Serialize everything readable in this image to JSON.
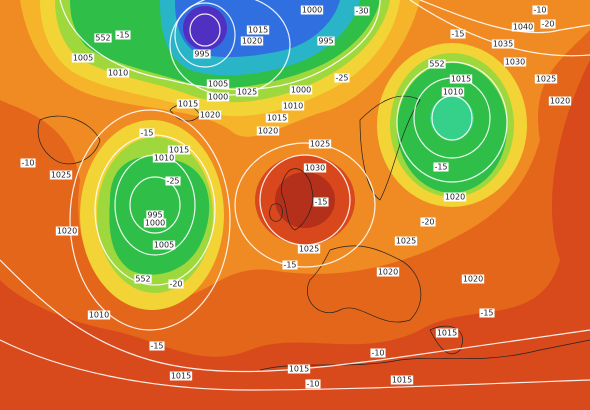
{
  "map": {
    "labels": [
      "1040",
      "1035",
      "1030",
      "1025",
      "1020",
      "1015",
      "1010",
      "552",
      "-15",
      "-20",
      "1025",
      "1030",
      "1020",
      "1015",
      "1010",
      "1000",
      "1000",
      "995",
      "1015",
      "1020",
      "995",
      "1005",
      "1000",
      "1020",
      "1025",
      "1015",
      "1005",
      "1010",
      "552",
      "-15",
      "-15",
      "1025",
      "1020",
      "-10",
      "1015",
      "1010",
      "-25",
      "995",
      "1000",
      "1005",
      "552",
      "-20",
      "1010",
      "-15",
      "1015",
      "-15",
      "1025",
      "-15",
      "1025",
      "1020",
      "-20",
      "-15",
      "1020",
      "1020",
      "-15",
      "1015",
      "-10",
      "1015",
      "1015",
      "-10",
      "-10",
      "-30",
      "-25"
    ]
  }
}
